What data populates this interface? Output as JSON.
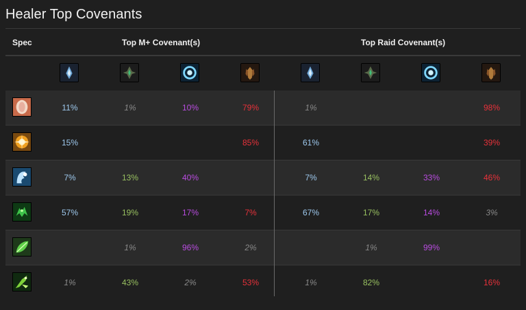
{
  "title": "Healer Top Covenants",
  "header": {
    "spec": "Spec",
    "mplus": "Top M+ Covenant(s)",
    "raid": "Top Raid Covenant(s)"
  },
  "covenant_icons": [
    "kyrian-icon",
    "necrolord-icon",
    "night-fae-icon",
    "venthyr-icon"
  ],
  "colors": {
    "kyrian": "#9ec9ee",
    "necrolord": "#98c060",
    "night_fae": "#b94ce0",
    "venthyr": "#e8313a",
    "low": "#888888"
  },
  "rows": [
    {
      "spec_icon": "discipline-priest-icon",
      "mplus": [
        "11%",
        "1%",
        "10%",
        "79%"
      ],
      "raid": [
        "1%",
        "",
        "",
        "98%"
      ]
    },
    {
      "spec_icon": "holy-paladin-icon",
      "mplus": [
        "15%",
        "",
        "",
        "85%"
      ],
      "raid": [
        "61%",
        "",
        "",
        "39%"
      ]
    },
    {
      "spec_icon": "restoration-shaman-icon",
      "mplus": [
        "7%",
        "13%",
        "40%",
        ""
      ],
      "raid": [
        "7%",
        "14%",
        "33%",
        "46%"
      ]
    },
    {
      "spec_icon": "preservation-druid-icon",
      "mplus": [
        "57%",
        "19%",
        "17%",
        "7%"
      ],
      "raid": [
        "67%",
        "17%",
        "14%",
        "3%"
      ]
    },
    {
      "spec_icon": "restoration-druid-icon",
      "mplus": [
        "",
        "1%",
        "96%",
        "2%"
      ],
      "raid": [
        "",
        "1%",
        "99%",
        ""
      ]
    },
    {
      "spec_icon": "mistweaver-monk-icon",
      "mplus": [
        "1%",
        "43%",
        "2%",
        "53%"
      ],
      "raid": [
        "1%",
        "82%",
        "",
        "16%"
      ]
    }
  ]
}
